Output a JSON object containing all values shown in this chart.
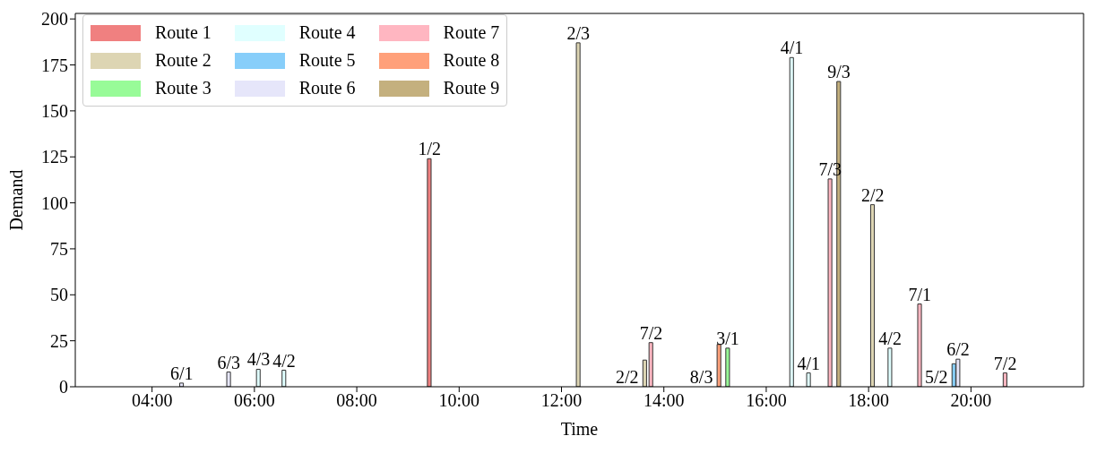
{
  "chart_data": {
    "type": "bar",
    "xlabel": "Time",
    "ylabel": "Demand",
    "xlim": [
      2.5,
      22.2
    ],
    "xticks": [
      {
        "value": 4,
        "label": "04:00"
      },
      {
        "value": 6,
        "label": "06:00"
      },
      {
        "value": 8,
        "label": "08:00"
      },
      {
        "value": 10,
        "label": "10:00"
      },
      {
        "value": 12,
        "label": "12:00"
      },
      {
        "value": 14,
        "label": "14:00"
      },
      {
        "value": 16,
        "label": "16:00"
      },
      {
        "value": 18,
        "label": "18:00"
      },
      {
        "value": 20,
        "label": "20:00"
      }
    ],
    "ylim": [
      0,
      203
    ],
    "yticks": [
      0,
      25,
      50,
      75,
      100,
      125,
      150,
      175,
      200
    ],
    "grid": false,
    "legend": "top left",
    "series": [
      {
        "name": "Route 1",
        "color": "#f08080",
        "x": [
          9.42
        ],
        "values": [
          124
        ]
      },
      {
        "name": "Route 2",
        "color": "#ddd5b3",
        "x": [
          12.33,
          13.63,
          18.08
        ],
        "values": [
          187,
          14.5,
          99
        ]
      },
      {
        "name": "Route 3",
        "color": "#98fb98",
        "x": [
          15.25
        ],
        "values": [
          21
        ]
      },
      {
        "name": "Route 4",
        "color": "#e0ffff",
        "x": [
          6.08,
          6.58,
          16.5,
          16.83,
          18.42
        ],
        "values": [
          9.5,
          9,
          179,
          7.5,
          21
        ]
      },
      {
        "name": "Route 5",
        "color": "#87cefa",
        "x": [
          19.67
        ],
        "values": [
          12.5
        ]
      },
      {
        "name": "Route 6",
        "color": "#e6e6fa",
        "x": [
          4.58,
          5.5,
          19.75
        ],
        "values": [
          2,
          8,
          15
        ]
      },
      {
        "name": "Route 7",
        "color": "#ffb6c1",
        "x": [
          13.75,
          17.25,
          19,
          20.67
        ],
        "values": [
          24,
          113,
          45,
          7.5
        ]
      },
      {
        "name": "Route 8",
        "color": "#ffa07a",
        "x": [
          15.08
        ],
        "values": [
          23
        ]
      },
      {
        "name": "Route 9",
        "color": "#c4b07e",
        "x": [
          17.42
        ],
        "values": [
          166
        ]
      }
    ],
    "annotations": [
      {
        "text": "6/1",
        "x": 4.58,
        "y": 2
      },
      {
        "text": "6/3",
        "x": 5.5,
        "y": 8
      },
      {
        "text": "4/3",
        "x": 6.08,
        "y": 9.5
      },
      {
        "text": "4/2",
        "x": 6.58,
        "y": 9
      },
      {
        "text": "1/2",
        "x": 9.42,
        "y": 124
      },
      {
        "text": "2/3",
        "x": 12.33,
        "y": 187
      },
      {
        "text": "2/2",
        "x": 13.63,
        "y": 14.5
      },
      {
        "text": "7/2",
        "x": 13.75,
        "y": 24
      },
      {
        "text": "8/3",
        "x": 15.08,
        "y": 23
      },
      {
        "text": "3/1",
        "x": 15.25,
        "y": 21
      },
      {
        "text": "4/1",
        "x": 16.5,
        "y": 179
      },
      {
        "text": "4/1",
        "x": 16.83,
        "y": 7.5
      },
      {
        "text": "7/3",
        "x": 17.25,
        "y": 113
      },
      {
        "text": "9/3",
        "x": 17.42,
        "y": 166
      },
      {
        "text": "2/2",
        "x": 18.08,
        "y": 99
      },
      {
        "text": "4/2",
        "x": 18.42,
        "y": 21
      },
      {
        "text": "7/1",
        "x": 19,
        "y": 45
      },
      {
        "text": "5/2",
        "x": 19.67,
        "y": 12.5
      },
      {
        "text": "6/2",
        "x": 19.75,
        "y": 15
      },
      {
        "text": "7/2",
        "x": 20.67,
        "y": 7.5
      }
    ]
  }
}
